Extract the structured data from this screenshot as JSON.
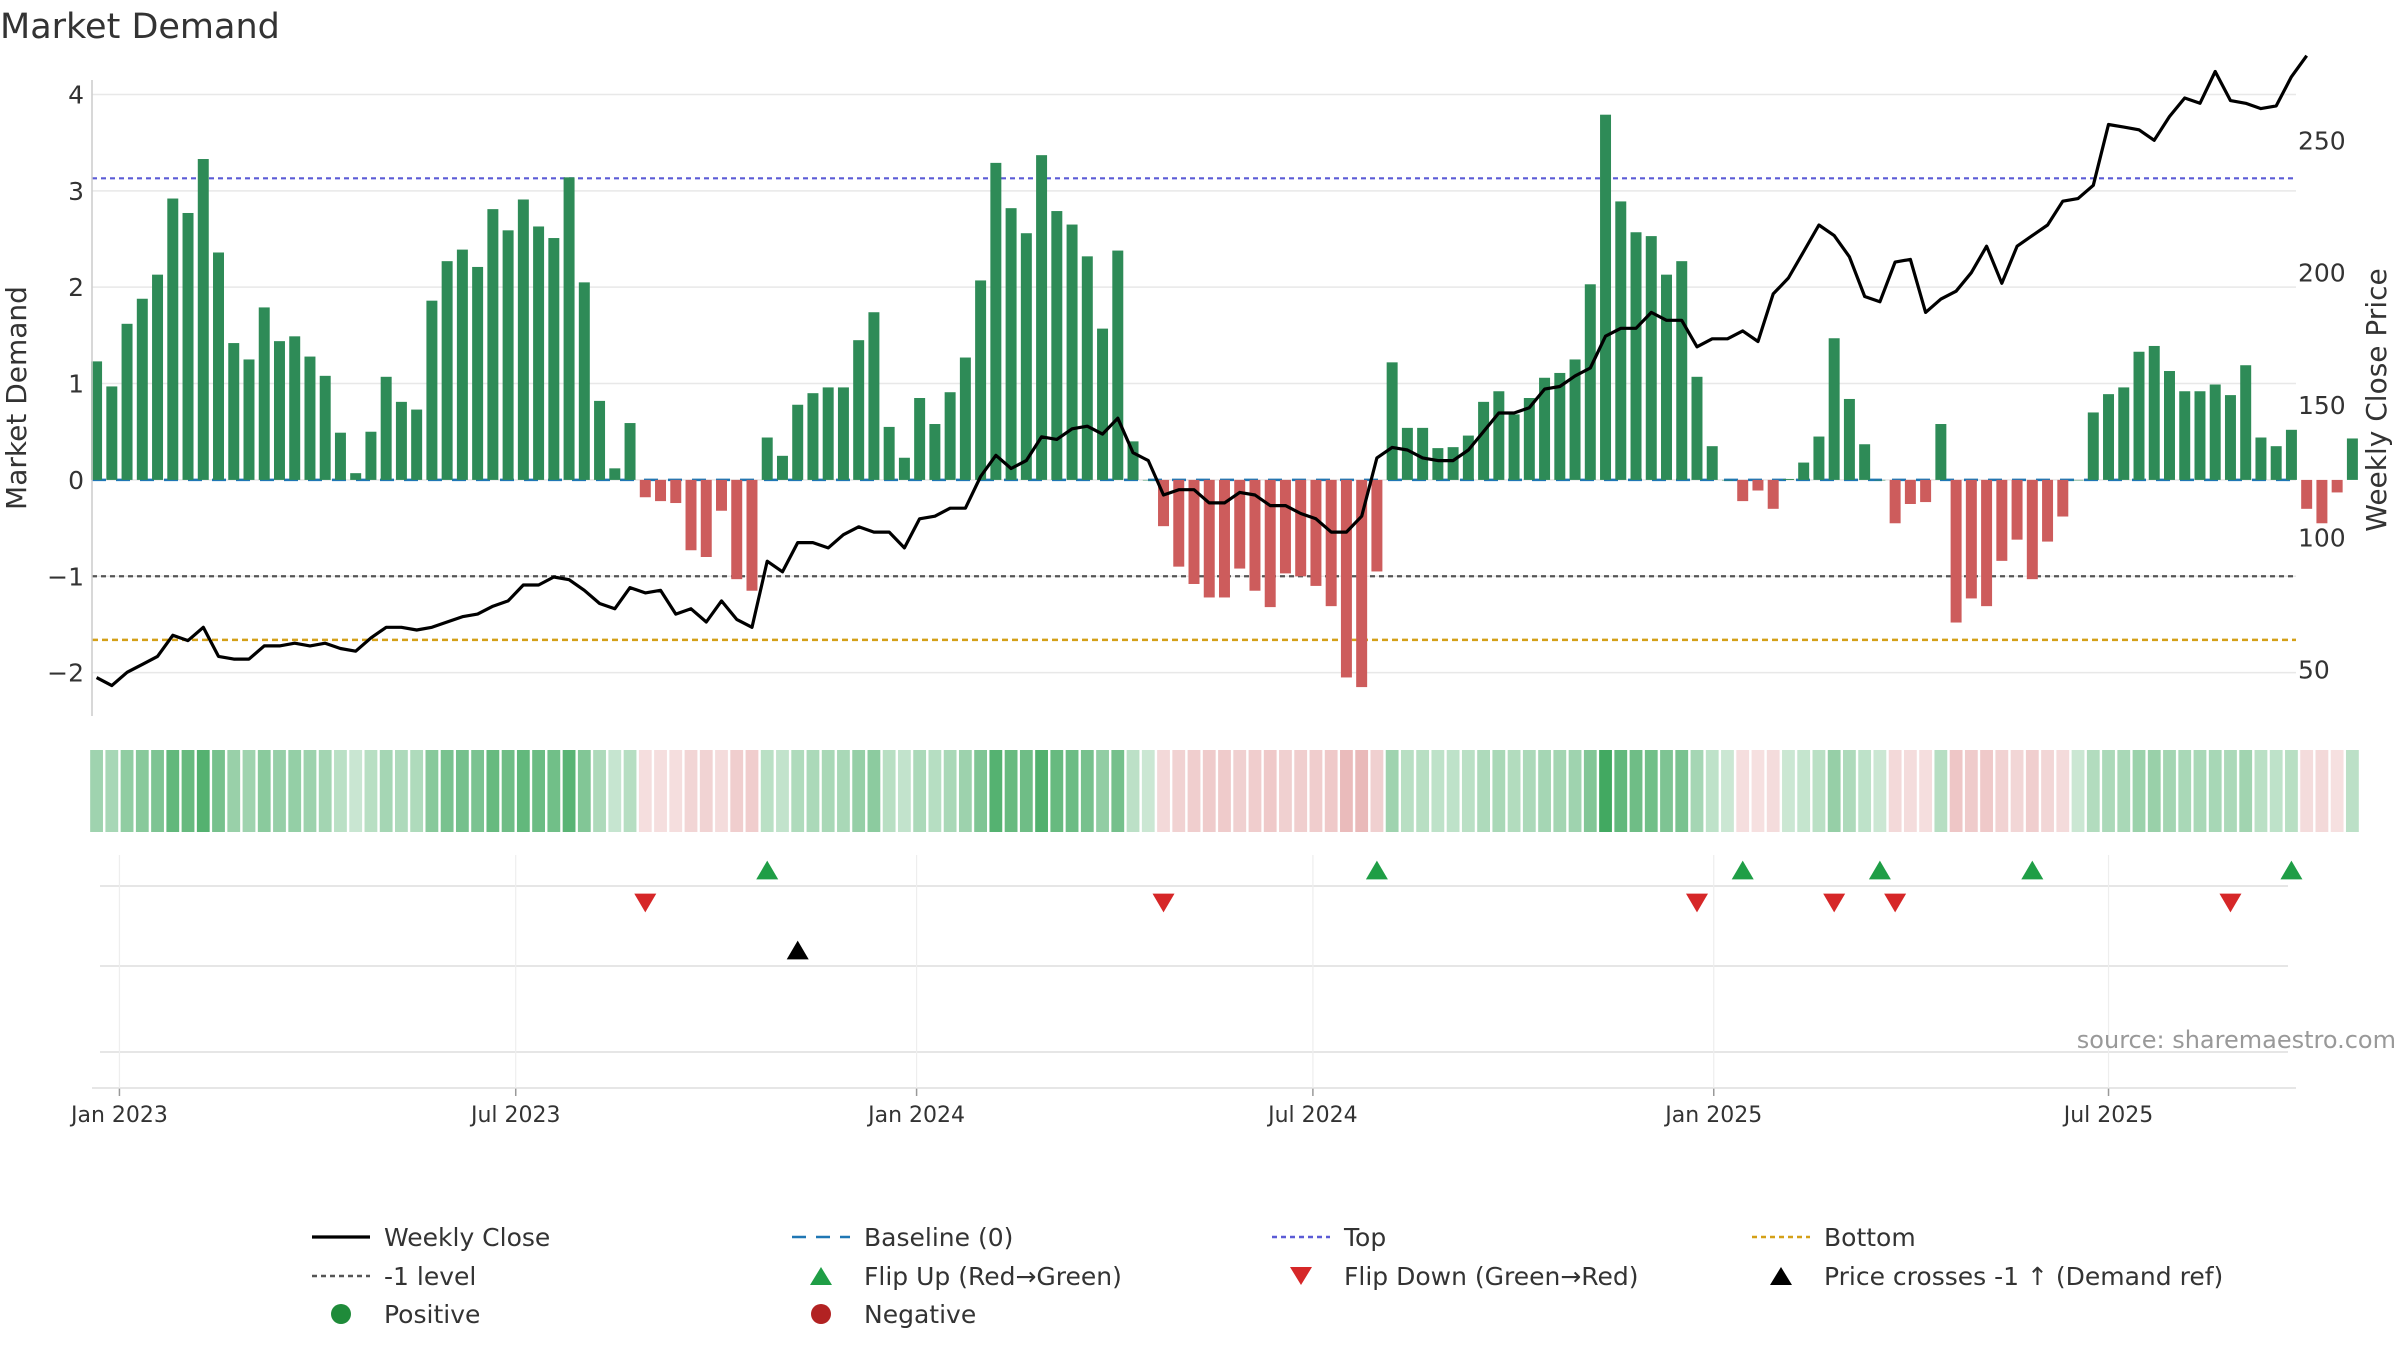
{
  "chart_data": {
    "type": "bar",
    "title": "Market Demand",
    "source": "source: sharemaestro.com",
    "ylabel_left": "Market Demand",
    "ylabel_right": "Weekly Close Price",
    "ylim_left": [
      -2.45,
      4.15
    ],
    "ylim_right": [
      32.5,
      272.8
    ],
    "yticks_left": [
      {
        "value": 4,
        "label": "4"
      },
      {
        "value": 3,
        "label": "3"
      },
      {
        "value": 2,
        "label": "2"
      },
      {
        "value": 1,
        "label": "1"
      },
      {
        "value": 0,
        "label": "0"
      },
      {
        "value": -1,
        "label": "−1"
      },
      {
        "value": -2,
        "label": "−2"
      }
    ],
    "yticks_right": [
      {
        "value": 250,
        "label": "250"
      },
      {
        "value": 200,
        "label": "200"
      },
      {
        "value": 150,
        "label": "150"
      },
      {
        "value": 100,
        "label": "100"
      },
      {
        "value": 50,
        "label": "50"
      }
    ],
    "xticks": [
      {
        "index": 1.5,
        "label": "Jan 2023"
      },
      {
        "index": 27.5,
        "label": "Jul 2023"
      },
      {
        "index": 53.8,
        "label": "Jan 2024"
      },
      {
        "index": 79.8,
        "label": "Jul 2024"
      },
      {
        "index": 106.1,
        "label": "Jan 2025"
      },
      {
        "index": 132,
        "label": "Jul 2025"
      }
    ],
    "x_index_range": [
      -0.3,
      144.3
    ],
    "reference_lines": {
      "top": 3.13,
      "minus_one": -1.0,
      "bottom": -1.66,
      "baseline": 0
    },
    "demand": [
      1.23,
      0.97,
      1.62,
      1.88,
      2.13,
      2.92,
      2.77,
      3.33,
      2.36,
      1.42,
      1.25,
      1.79,
      1.44,
      1.49,
      1.28,
      1.08,
      0.49,
      0.07,
      0.5,
      1.07,
      0.81,
      0.73,
      1.86,
      2.27,
      2.39,
      2.21,
      2.81,
      2.59,
      2.91,
      2.63,
      2.51,
      3.14,
      2.05,
      0.82,
      0.12,
      0.59,
      -0.18,
      -0.22,
      -0.24,
      -0.73,
      -0.8,
      -0.32,
      -1.03,
      -1.15,
      0.44,
      0.25,
      0.78,
      0.9,
      0.96,
      0.96,
      1.45,
      1.74,
      0.55,
      0.23,
      0.85,
      0.58,
      0.91,
      1.27,
      2.07,
      3.29,
      2.82,
      2.56,
      3.37,
      2.79,
      2.65,
      2.32,
      1.57,
      2.38,
      0.4,
      0.0,
      -0.48,
      -0.9,
      -1.08,
      -1.22,
      -1.22,
      -0.92,
      -1.15,
      -1.32,
      -0.97,
      -1.0,
      -1.1,
      -1.31,
      -2.05,
      -2.15,
      -0.95,
      1.22,
      0.54,
      0.54,
      0.33,
      0.34,
      0.46,
      0.81,
      0.92,
      0.68,
      0.85,
      1.06,
      1.11,
      1.25,
      2.03,
      3.79,
      2.89,
      2.57,
      2.53,
      2.13,
      2.27,
      1.07,
      0.35,
      0.0,
      -0.22,
      -0.11,
      -0.3,
      0.01,
      0.18,
      0.45,
      1.47,
      0.84,
      0.37,
      0.0,
      -0.45,
      -0.25,
      -0.23,
      0.58,
      -1.48,
      -1.23,
      -1.31,
      -0.84,
      -0.62,
      -1.03,
      -0.64,
      -0.38,
      0.0,
      0.7,
      0.89,
      0.96,
      1.33,
      1.39,
      1.13,
      0.92,
      0.92,
      0.99,
      0.88,
      1.19,
      0.44,
      0.35,
      0.52,
      -0.3,
      -0.45,
      -0.13,
      0.43
    ],
    "weekly_close": [
      47,
      44,
      49,
      52,
      55,
      63,
      61,
      66,
      55,
      54,
      54,
      59,
      59,
      60,
      59,
      60,
      58,
      57,
      62,
      66,
      66,
      65,
      66,
      68,
      70,
      71,
      74,
      76,
      82,
      82,
      85,
      84,
      80,
      75,
      73,
      81,
      79,
      80,
      71,
      73,
      68,
      76,
      69,
      66,
      91,
      87,
      98,
      98,
      96,
      101,
      104,
      102,
      102,
      96,
      107,
      108,
      111,
      111,
      123,
      131,
      126,
      129,
      138,
      137,
      141,
      142,
      139,
      145,
      132,
      129,
      116,
      118,
      118,
      113,
      113,
      117,
      116,
      112,
      112,
      109,
      107,
      102,
      102,
      108,
      130,
      134,
      133,
      130,
      129,
      129,
      133,
      140,
      147,
      147,
      149,
      156,
      157,
      161,
      164,
      176,
      179,
      179,
      185,
      182,
      182,
      172,
      175,
      175,
      178,
      174,
      192,
      198,
      208,
      218,
      214,
      206,
      191,
      189,
      204,
      205,
      185,
      190,
      193,
      200,
      210,
      196,
      210,
      214,
      218,
      227,
      228,
      233,
      256,
      255,
      254,
      250,
      259,
      266,
      264,
      276,
      265,
      264,
      262,
      263,
      274,
      282
    ],
    "flip_up_indices": [
      44,
      84,
      108,
      117,
      127,
      144
    ],
    "flip_down_indices": [
      36,
      70,
      105,
      114,
      118,
      140
    ],
    "price_cross_indices": [
      46
    ],
    "legend": [
      {
        "label": "Weekly Close",
        "key": "weekly_close",
        "color": "#000000"
      },
      {
        "label": "Baseline (0)",
        "key": "baseline",
        "color": "#1f77b4"
      },
      {
        "label": "Top",
        "key": "top",
        "color": "#5b5bd6"
      },
      {
        "label": "Bottom",
        "key": "bottom",
        "color": "#d4a017"
      },
      {
        "label": "-1 level",
        "key": "minus_one",
        "color": "#555555"
      },
      {
        "label": "Flip Up (Red→Green)",
        "key": "flip_up",
        "color": "#1f9e46"
      },
      {
        "label": "Flip Down (Green→Red)",
        "key": "flip_down",
        "color": "#d62728"
      },
      {
        "label": "Price crosses -1 ↑ (Demand ref)",
        "key": "price_cross",
        "color": "#000000"
      },
      {
        "label": "Positive",
        "key": "positive",
        "color": "#1f8b3a"
      },
      {
        "label": "Negative",
        "key": "negative",
        "color": "#b22222"
      }
    ],
    "colors": {
      "positive_bar": "#2e8b57",
      "negative_bar": "#cd5c5c",
      "price_line": "#000000",
      "top_line": "#5b5bd6",
      "bottom_line": "#d4a017",
      "minus_one_line": "#555555",
      "baseline": "#1f77b4",
      "grid": "#e8e8e8",
      "text": "#333333",
      "source_text": "#999999"
    }
  }
}
